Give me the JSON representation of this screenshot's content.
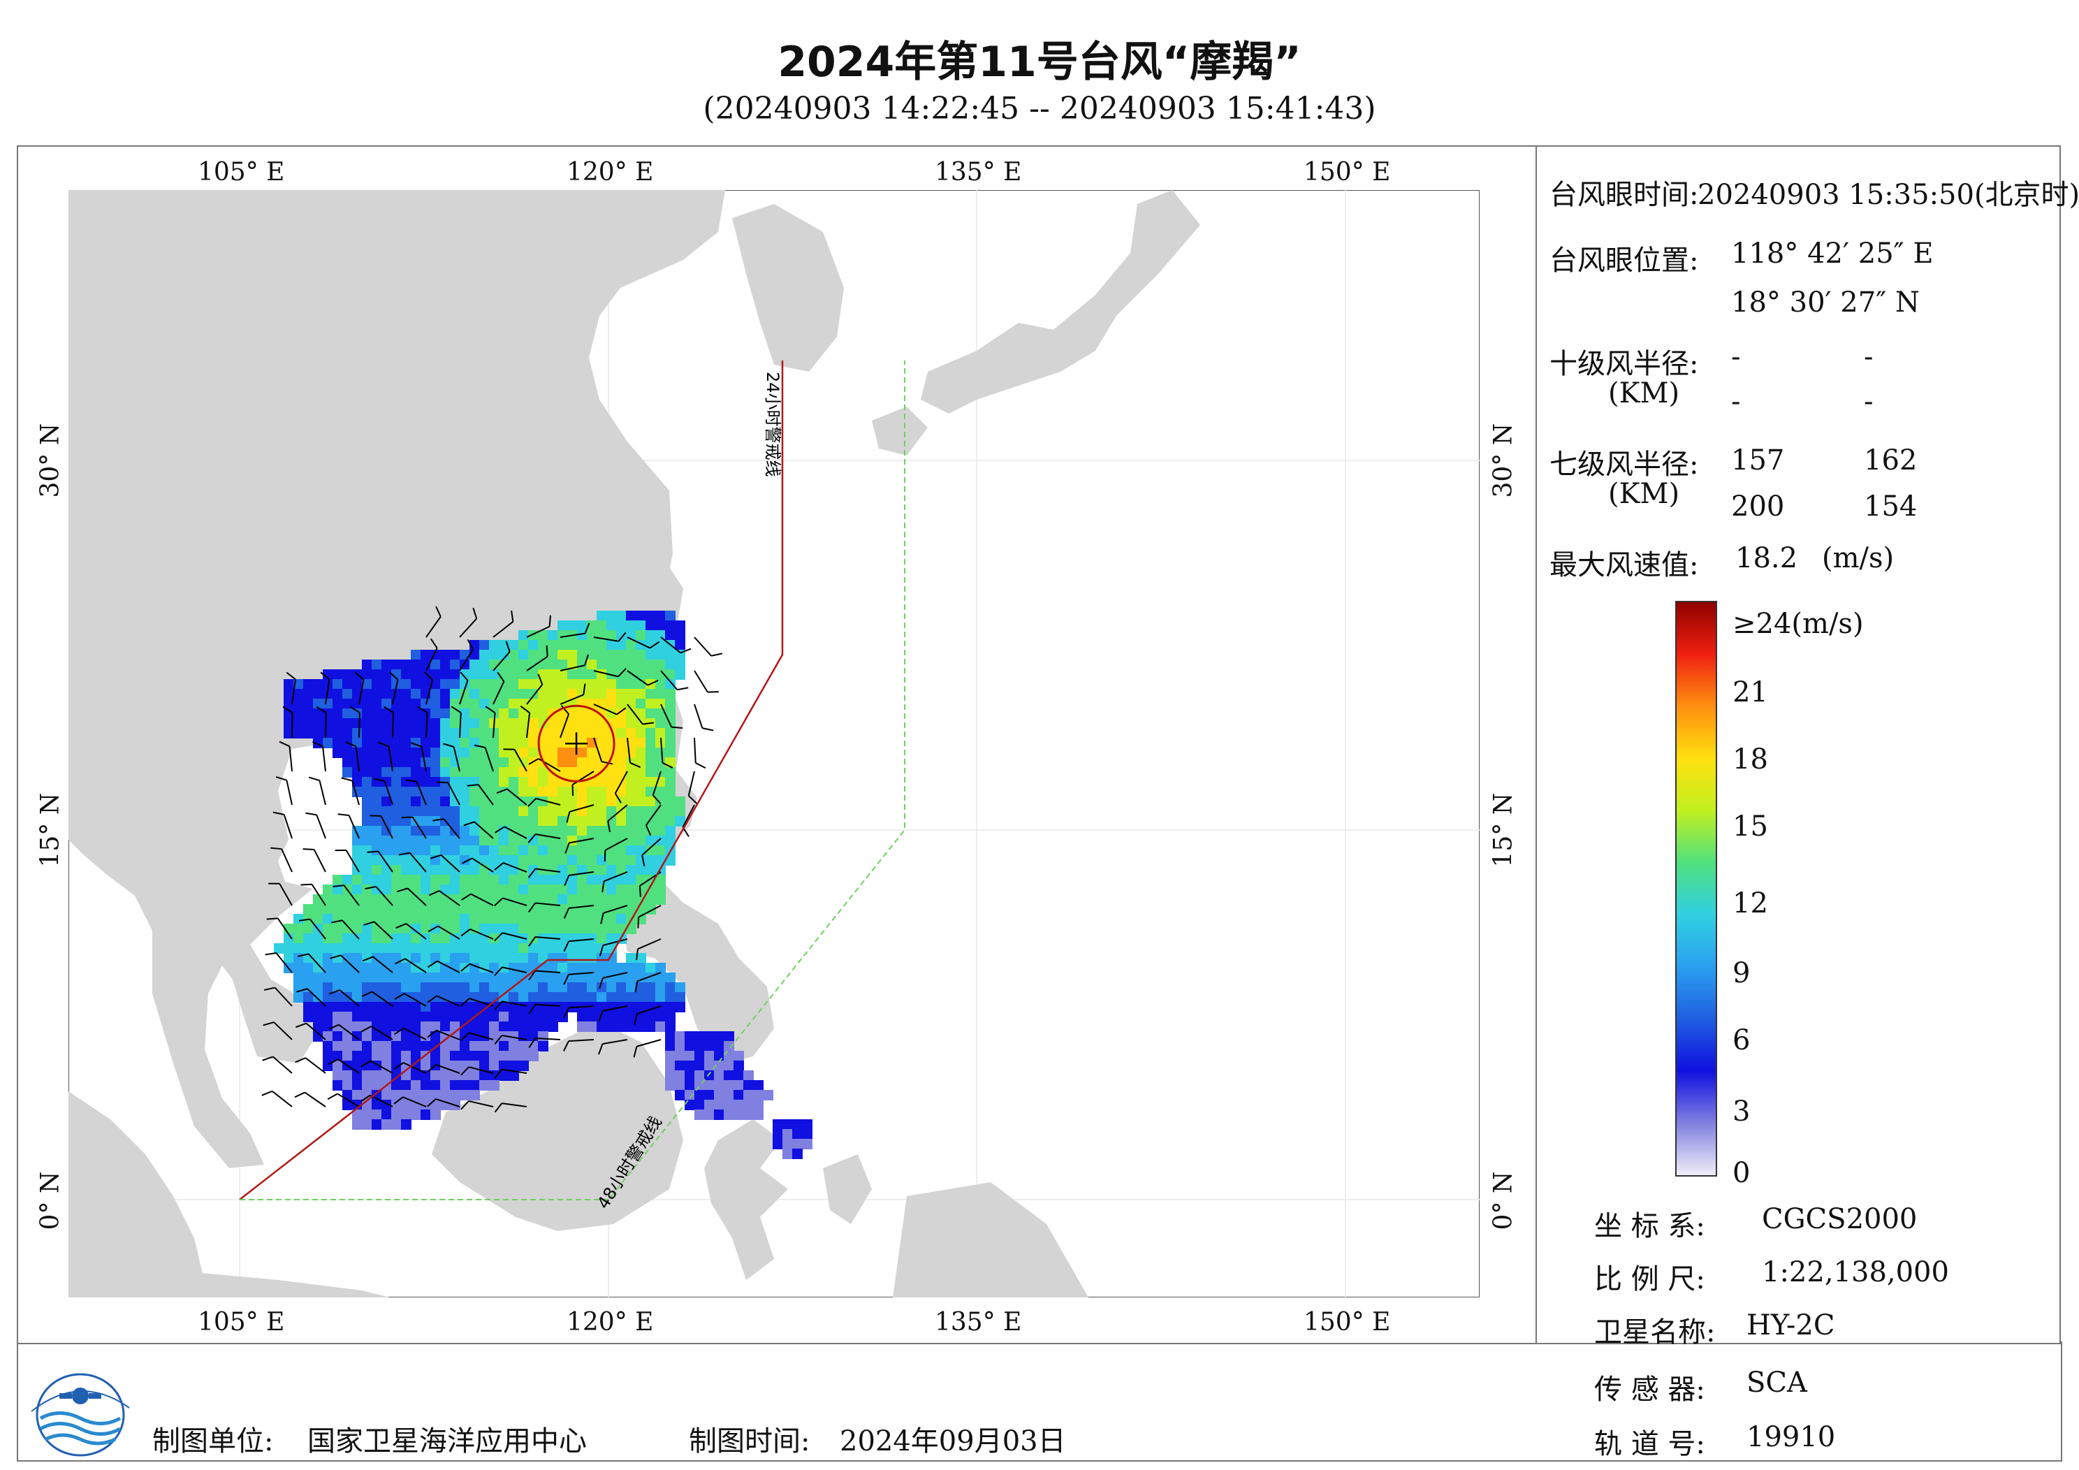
{
  "title": "2024年第11号台风“摩羯”",
  "subtitle": "(20240903 14:22:45 -- 20240903 15:41:43)",
  "map": {
    "lon_labels": [
      "105° E",
      "120° E",
      "135° E",
      "150° E"
    ],
    "lat_labels": [
      "30° N",
      "15° N",
      "0° N"
    ],
    "warning_24h": "24小时警戒线",
    "warning_48h": "48小时警戒线",
    "eye_lon": 118.707,
    "eye_lat": 18.508,
    "colors": {
      "land": "#d4d4d4",
      "line24": "#b01818",
      "line48": "#6fd060",
      "frame": "#777777"
    }
  },
  "info": {
    "eye_time_label": "台风眼时间:",
    "eye_time_value": "20240903 15:35:50(北京时)",
    "eye_pos_label": "台风眼位置:",
    "eye_lon_text": "118° 42′ 25″ E",
    "eye_lat_text": "18° 30′ 27″ N",
    "r10_label": "十级风半径:",
    "r10_unit": "(KM)",
    "r10_values": [
      "-",
      "-",
      "-",
      "-"
    ],
    "r7_label": "七级风半径:",
    "r7_unit": "(KM)",
    "r7_values": [
      "157",
      "162",
      "200",
      "154"
    ],
    "max_wind_label": "最大风速值:",
    "max_wind_value": "18.2",
    "max_wind_unit": "(m/s)"
  },
  "colorbar": {
    "top_label": "≥24(m/s)",
    "ticks": [
      "21",
      "18",
      "15",
      "12",
      "9",
      "6",
      "3",
      "0"
    ],
    "colors": [
      "#f0eef8",
      "#8080e0",
      "#1010e0",
      "#1f5fe0",
      "#2aa0f0",
      "#30d0e0",
      "#50e080",
      "#c0f020",
      "#ffe010",
      "#ff9010",
      "#f02010",
      "#900000"
    ]
  },
  "meta": {
    "crs_label": "坐 标 系:",
    "crs_value": "CGCS2000",
    "scale_label": "比 例 尺:",
    "scale_value": "1:22,138,000",
    "sat_label": "卫星名称:",
    "sat_value": "HY-2C",
    "sensor_label": "传 感 器:",
    "sensor_value": "SCA",
    "orbit_label": "轨 道 号:",
    "orbit_value": "19910"
  },
  "footer": {
    "unit_label": "制图单位:",
    "unit_value": "国家卫星海洋应用中心",
    "time_label": "制图时间:",
    "time_value": "2024年09月03日"
  }
}
